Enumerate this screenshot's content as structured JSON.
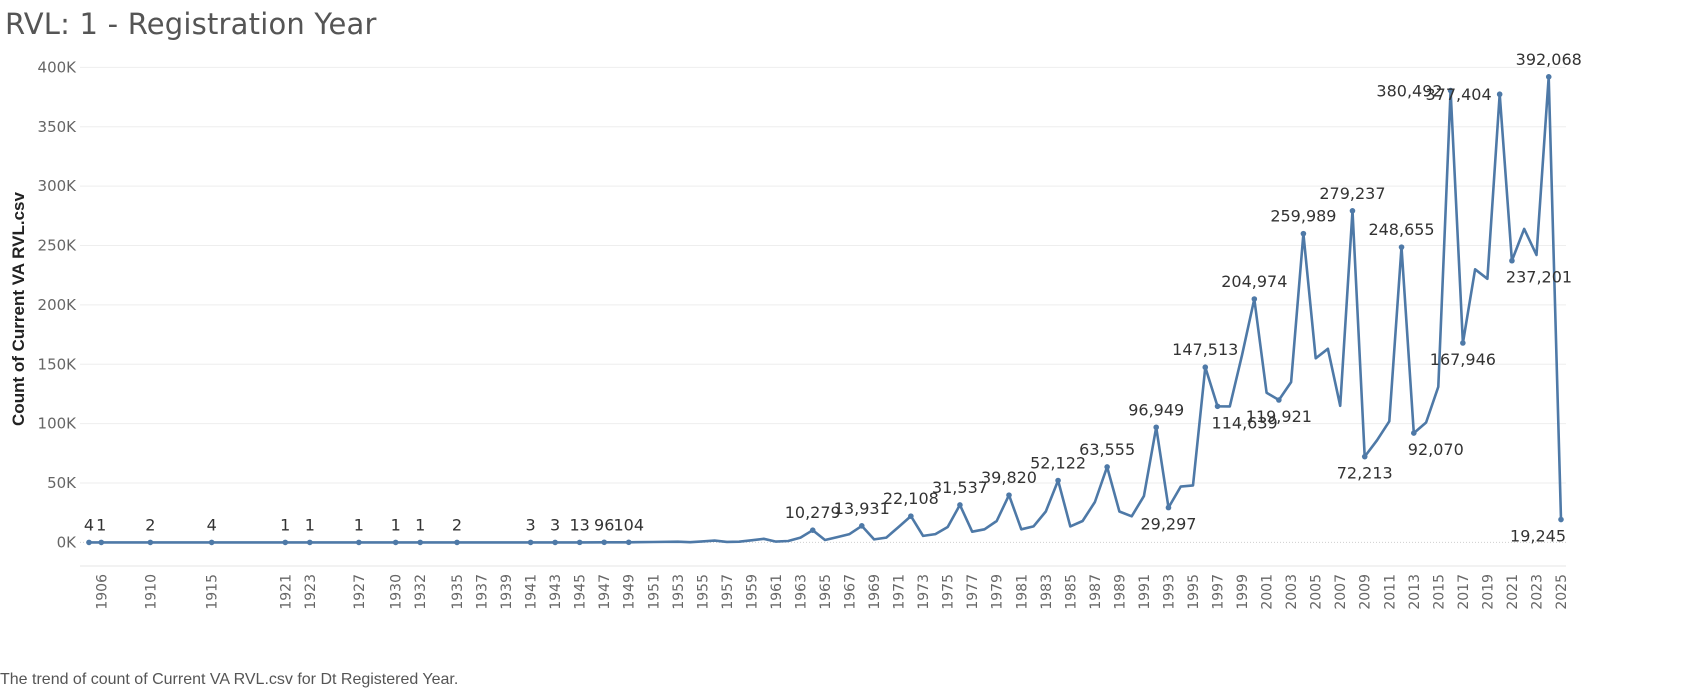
{
  "title": "RVL:  1 - Registration Year",
  "caption": "The trend of count of Current VA RVL.csv for Dt Registered Year.",
  "chart_data": {
    "type": "line",
    "title": "RVL:  1 - Registration Year",
    "xlabel": "",
    "ylabel": "Count of Current VA RVL.csv",
    "ylim": [
      0,
      410000
    ],
    "xlim": [
      1905,
      2025
    ],
    "y_ticks": [
      0,
      50000,
      100000,
      150000,
      200000,
      250000,
      300000,
      350000,
      400000
    ],
    "y_tick_labels": [
      "0K",
      "50K",
      "100K",
      "150K",
      "200K",
      "250K",
      "300K",
      "350K",
      "400K"
    ],
    "x_tick_labels": [
      "1906",
      "1910",
      "1915",
      "1921",
      "1923",
      "1927",
      "1930",
      "1932",
      "1935",
      "1937",
      "1939",
      "1941",
      "1943",
      "1945",
      "1947",
      "1949",
      "1951",
      "1953",
      "1955",
      "1957",
      "1959",
      "1961",
      "1963",
      "1965",
      "1967",
      "1969",
      "1971",
      "1973",
      "1975",
      "1977",
      "1979",
      "1981",
      "1983",
      "1985",
      "1987",
      "1989",
      "1991",
      "1993",
      "1995",
      "1997",
      "1999",
      "2001",
      "2003",
      "2005",
      "2007",
      "2009",
      "2011",
      "2013",
      "2015",
      "2017",
      "2019",
      "2021",
      "2023",
      "2025"
    ],
    "color": "#4e79a7",
    "series": [
      {
        "name": "Count of Current VA RVL.csv",
        "points": [
          [
            1905,
            4
          ],
          [
            1906,
            1
          ],
          [
            1910,
            2
          ],
          [
            1915,
            4
          ],
          [
            1921,
            1
          ],
          [
            1923,
            1
          ],
          [
            1927,
            1
          ],
          [
            1930,
            1
          ],
          [
            1932,
            1
          ],
          [
            1935,
            2
          ],
          [
            1941,
            3
          ],
          [
            1943,
            3
          ],
          [
            1945,
            13
          ],
          [
            1947,
            96
          ],
          [
            1949,
            104
          ],
          [
            1951,
            300
          ],
          [
            1953,
            600
          ],
          [
            1954,
            200
          ],
          [
            1955,
            800
          ],
          [
            1956,
            1500
          ],
          [
            1957,
            400
          ],
          [
            1958,
            600
          ],
          [
            1959,
            1800
          ],
          [
            1960,
            3000
          ],
          [
            1961,
            700
          ],
          [
            1962,
            1200
          ],
          [
            1963,
            4000
          ],
          [
            1964,
            10279
          ],
          [
            1965,
            2000
          ],
          [
            1966,
            4500
          ],
          [
            1967,
            7000
          ],
          [
            1968,
            13931
          ],
          [
            1969,
            2500
          ],
          [
            1970,
            4000
          ],
          [
            1971,
            13000
          ],
          [
            1972,
            22108
          ],
          [
            1973,
            5500
          ],
          [
            1974,
            7000
          ],
          [
            1975,
            13000
          ],
          [
            1976,
            31537
          ],
          [
            1977,
            9000
          ],
          [
            1978,
            11000
          ],
          [
            1979,
            18000
          ],
          [
            1980,
            39820
          ],
          [
            1981,
            11000
          ],
          [
            1982,
            13500
          ],
          [
            1983,
            26000
          ],
          [
            1984,
            52122
          ],
          [
            1985,
            13500
          ],
          [
            1986,
            18000
          ],
          [
            1987,
            34000
          ],
          [
            1988,
            63555
          ],
          [
            1989,
            26000
          ],
          [
            1990,
            22000
          ],
          [
            1991,
            39000
          ],
          [
            1992,
            96949
          ],
          [
            1993,
            29297
          ],
          [
            1994,
            47000
          ],
          [
            1995,
            48000
          ],
          [
            1996,
            147513
          ],
          [
            1997,
            114639
          ],
          [
            1998,
            114500
          ],
          [
            1999,
            158000
          ],
          [
            2000,
            204974
          ],
          [
            2001,
            126000
          ],
          [
            2002,
            119921
          ],
          [
            2003,
            135000
          ],
          [
            2004,
            259989
          ],
          [
            2005,
            155000
          ],
          [
            2006,
            163000
          ],
          [
            2007,
            115000
          ],
          [
            2008,
            279237
          ],
          [
            2009,
            72213
          ],
          [
            2010,
            86000
          ],
          [
            2011,
            102000
          ],
          [
            2012,
            248655
          ],
          [
            2013,
            92070
          ],
          [
            2014,
            101000
          ],
          [
            2015,
            131000
          ],
          [
            2016,
            380492
          ],
          [
            2017,
            167946
          ],
          [
            2018,
            230000
          ],
          [
            2019,
            222000
          ],
          [
            2020,
            377404
          ],
          [
            2021,
            237201
          ],
          [
            2022,
            264000
          ],
          [
            2023,
            242000
          ],
          [
            2024,
            392068
          ],
          [
            2025,
            19245
          ]
        ]
      }
    ],
    "data_labels": [
      {
        "x": 1905,
        "text": "4",
        "pos": "above"
      },
      {
        "x": 1906,
        "text": "1",
        "pos": "above"
      },
      {
        "x": 1910,
        "text": "2",
        "pos": "above"
      },
      {
        "x": 1915,
        "text": "4",
        "pos": "above"
      },
      {
        "x": 1921,
        "text": "1",
        "pos": "above"
      },
      {
        "x": 1923,
        "text": "1",
        "pos": "above"
      },
      {
        "x": 1927,
        "text": "1",
        "pos": "above"
      },
      {
        "x": 1930,
        "text": "1",
        "pos": "above"
      },
      {
        "x": 1932,
        "text": "1",
        "pos": "above"
      },
      {
        "x": 1935,
        "text": "2",
        "pos": "above"
      },
      {
        "x": 1941,
        "text": "3",
        "pos": "above"
      },
      {
        "x": 1943,
        "text": "3",
        "pos": "above"
      },
      {
        "x": 1945,
        "text": "13",
        "pos": "above"
      },
      {
        "x": 1947,
        "text": "96",
        "pos": "above"
      },
      {
        "x": 1949,
        "text": "104",
        "pos": "above"
      },
      {
        "x": 1964,
        "text": "10,279",
        "pos": "above"
      },
      {
        "x": 1968,
        "text": "13,931",
        "pos": "above"
      },
      {
        "x": 1972,
        "text": "22,108",
        "pos": "above"
      },
      {
        "x": 1976,
        "text": "31,537",
        "pos": "above"
      },
      {
        "x": 1980,
        "text": "39,820",
        "pos": "above"
      },
      {
        "x": 1984,
        "text": "52,122",
        "pos": "above"
      },
      {
        "x": 1988,
        "text": "63,555",
        "pos": "above"
      },
      {
        "x": 1992,
        "text": "96,949",
        "pos": "above"
      },
      {
        "x": 1993,
        "text": "29,297",
        "pos": "below"
      },
      {
        "x": 1996,
        "text": "147,513",
        "pos": "above"
      },
      {
        "x": 1997,
        "text": "114,639",
        "pos": "below-right"
      },
      {
        "x": 2000,
        "text": "204,974",
        "pos": "above"
      },
      {
        "x": 2002,
        "text": "119,921",
        "pos": "below"
      },
      {
        "x": 2004,
        "text": "259,989",
        "pos": "above"
      },
      {
        "x": 2008,
        "text": "279,237",
        "pos": "above"
      },
      {
        "x": 2009,
        "text": "72,213",
        "pos": "below"
      },
      {
        "x": 2012,
        "text": "248,655",
        "pos": "above"
      },
      {
        "x": 2013,
        "text": "92,070",
        "pos": "below-right"
      },
      {
        "x": 2016,
        "text": "380,492",
        "pos": "left"
      },
      {
        "x": 2017,
        "text": "167,946",
        "pos": "below"
      },
      {
        "x": 2020,
        "text": "377,404",
        "pos": "left"
      },
      {
        "x": 2021,
        "text": "237,201",
        "pos": "below-right"
      },
      {
        "x": 2024,
        "text": "392,068",
        "pos": "above"
      },
      {
        "x": 2025,
        "text": "19,245",
        "pos": "left"
      }
    ],
    "grid": true
  }
}
